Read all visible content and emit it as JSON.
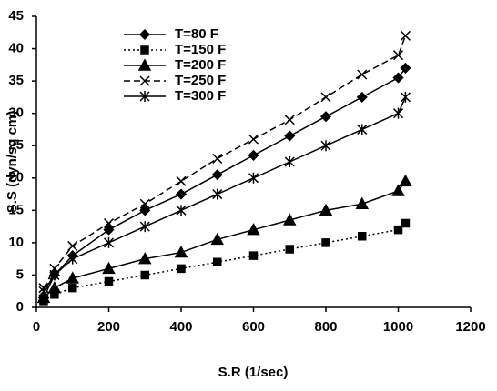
{
  "chart_data": {
    "type": "line",
    "x_label": "S.R (1/sec)",
    "y_label": "S.S (dyn/sq cm)",
    "x": [
      20,
      50,
      100,
      200,
      300,
      400,
      500,
      600,
      700,
      800,
      900,
      1000,
      1020
    ],
    "series": [
      {
        "name": "T=80 F",
        "color": "#000000",
        "marker": "diamond",
        "dash": "solid",
        "values": [
          1.5,
          5,
          8,
          12,
          15,
          17.5,
          20.5,
          23.5,
          26.5,
          29.5,
          32.5,
          35.5,
          37
        ]
      },
      {
        "name": "T=150 F",
        "color": "#000000",
        "marker": "square",
        "dash": "dotted",
        "values": [
          1,
          2,
          3,
          4,
          5,
          6,
          7,
          8,
          9,
          10,
          11,
          12,
          13
        ]
      },
      {
        "name": "T=200 F",
        "color": "#000000",
        "marker": "triangle",
        "dash": "solid",
        "values": [
          1.5,
          3,
          4.5,
          6,
          7.5,
          8.5,
          10.5,
          12,
          13.5,
          15,
          16,
          18,
          19.5
        ]
      },
      {
        "name": "T=250 F",
        "color": "#000000",
        "marker": "x",
        "dash": "dashed",
        "values": [
          3,
          6,
          9.5,
          13,
          16,
          19.5,
          23,
          26,
          29,
          32.5,
          36,
          39,
          42
        ]
      },
      {
        "name": "T=300 F",
        "color": "#000000",
        "marker": "star",
        "dash": "solid",
        "values": [
          2.5,
          5,
          7.5,
          10,
          12.5,
          15,
          17.5,
          20,
          22.5,
          25,
          27.5,
          30,
          32.5
        ]
      }
    ],
    "xlim": [
      0,
      1200
    ],
    "xticks": [
      0,
      200,
      400,
      600,
      800,
      1000,
      1200
    ],
    "ylim": [
      0,
      45
    ],
    "yticks": [
      0,
      5,
      10,
      15,
      20,
      25,
      30,
      35,
      40,
      45
    ],
    "legend": "upper-left"
  }
}
